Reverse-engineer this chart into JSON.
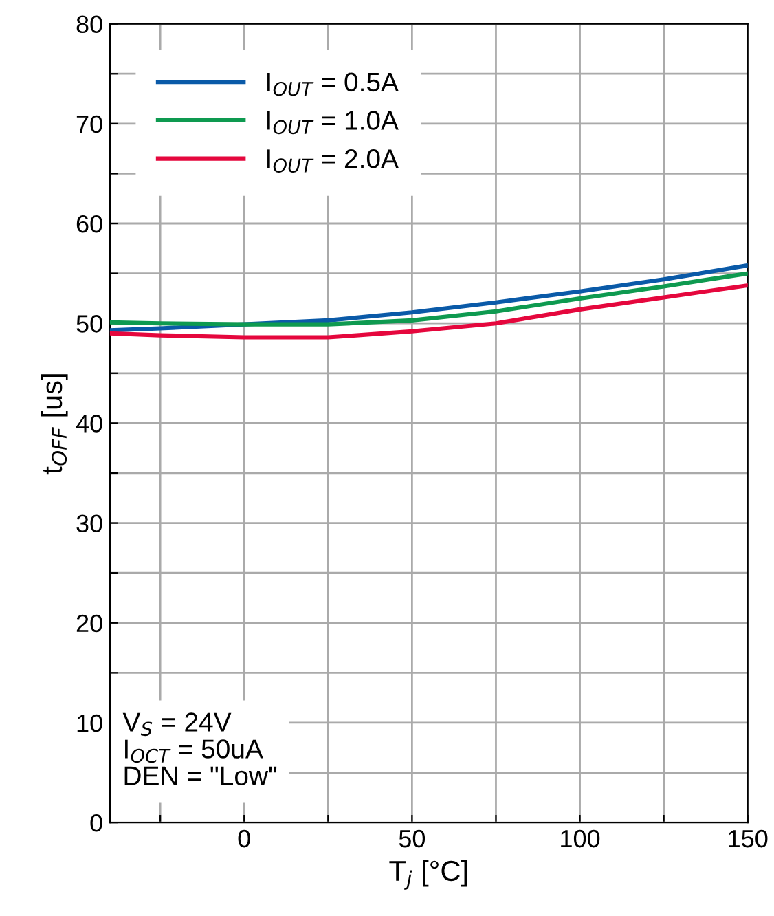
{
  "chart_data": {
    "type": "line",
    "xlabel": "T$_{j}$ [°C]",
    "ylabel": "t$_{OFF}$ [us]",
    "xlim": [
      -40,
      150
    ],
    "ylim": [
      0,
      80
    ],
    "xticks": [
      {
        "value": -25,
        "label": null
      },
      0,
      {
        "value": 25,
        "label": null
      },
      50,
      {
        "value": 75,
        "label": null
      },
      100,
      {
        "value": 125,
        "label": null
      },
      150
    ],
    "yticks": [
      0,
      {
        "value": 5,
        "label": null
      },
      10,
      {
        "value": 15,
        "label": null
      },
      20,
      {
        "value": 25,
        "label": null
      },
      30,
      {
        "value": 35,
        "label": null
      },
      40,
      {
        "value": 45,
        "label": null
      },
      50,
      {
        "value": 55,
        "label": null
      },
      60,
      {
        "value": 65,
        "label": null
      },
      70,
      {
        "value": 75,
        "label": null
      },
      80
    ],
    "grid": true,
    "legend": "top left",
    "line_style": "solid",
    "marker": "none",
    "x": [
      -40,
      -25,
      0,
      25,
      50,
      75,
      100,
      125,
      150
    ],
    "series": [
      {
        "name": "I$_{OUT}$ = 0.5A",
        "color": "#0a5aa8",
        "values": [
          49.3,
          49.5,
          49.9,
          50.3,
          51.1,
          52.1,
          53.2,
          54.4,
          55.8
        ]
      },
      {
        "name": "I$_{OUT}$ = 1.0A",
        "color": "#0e9a50",
        "values": [
          50.1,
          50.0,
          49.9,
          49.9,
          50.3,
          51.2,
          52.5,
          53.7,
          55.0
        ]
      },
      {
        "name": "I$_{OUT}$ = 2.0A",
        "color": "#e5073d",
        "values": [
          49.0,
          48.8,
          48.6,
          48.6,
          49.2,
          50.0,
          51.4,
          52.6,
          53.8
        ]
      }
    ],
    "annotations": [
      "V$_{S}$ = 24V\nI$_{OCT}$ = 50uA\nDEN = \"Low\""
    ]
  }
}
